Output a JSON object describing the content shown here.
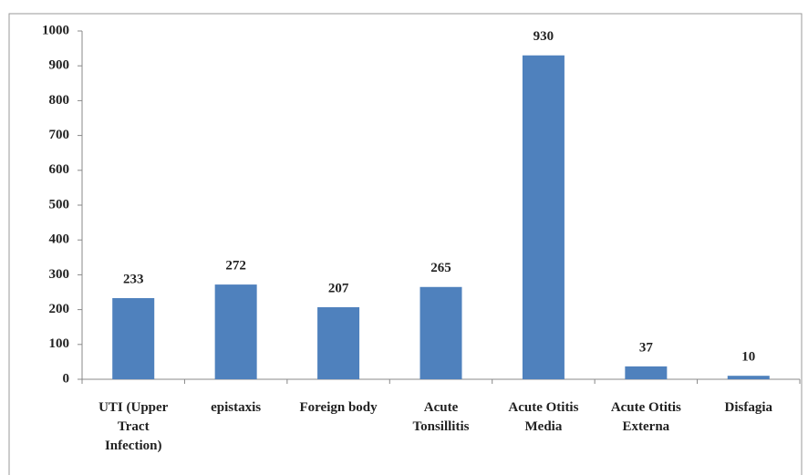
{
  "chart_data": {
    "type": "bar",
    "categories": [
      "UTI (Upper Tract Infection)",
      "epistaxis",
      "Foreign body",
      "Acute Tonsillitis",
      "Acute Otitis Media",
      "Acute Otitis Externa",
      "Disfagia"
    ],
    "values": [
      233,
      272,
      207,
      265,
      930,
      37,
      10
    ],
    "color": "#4f81bd",
    "ylim": [
      0,
      1000
    ],
    "yticks": [
      0,
      100,
      200,
      300,
      400,
      500,
      600,
      700,
      800,
      900,
      1000
    ],
    "grid": false
  }
}
